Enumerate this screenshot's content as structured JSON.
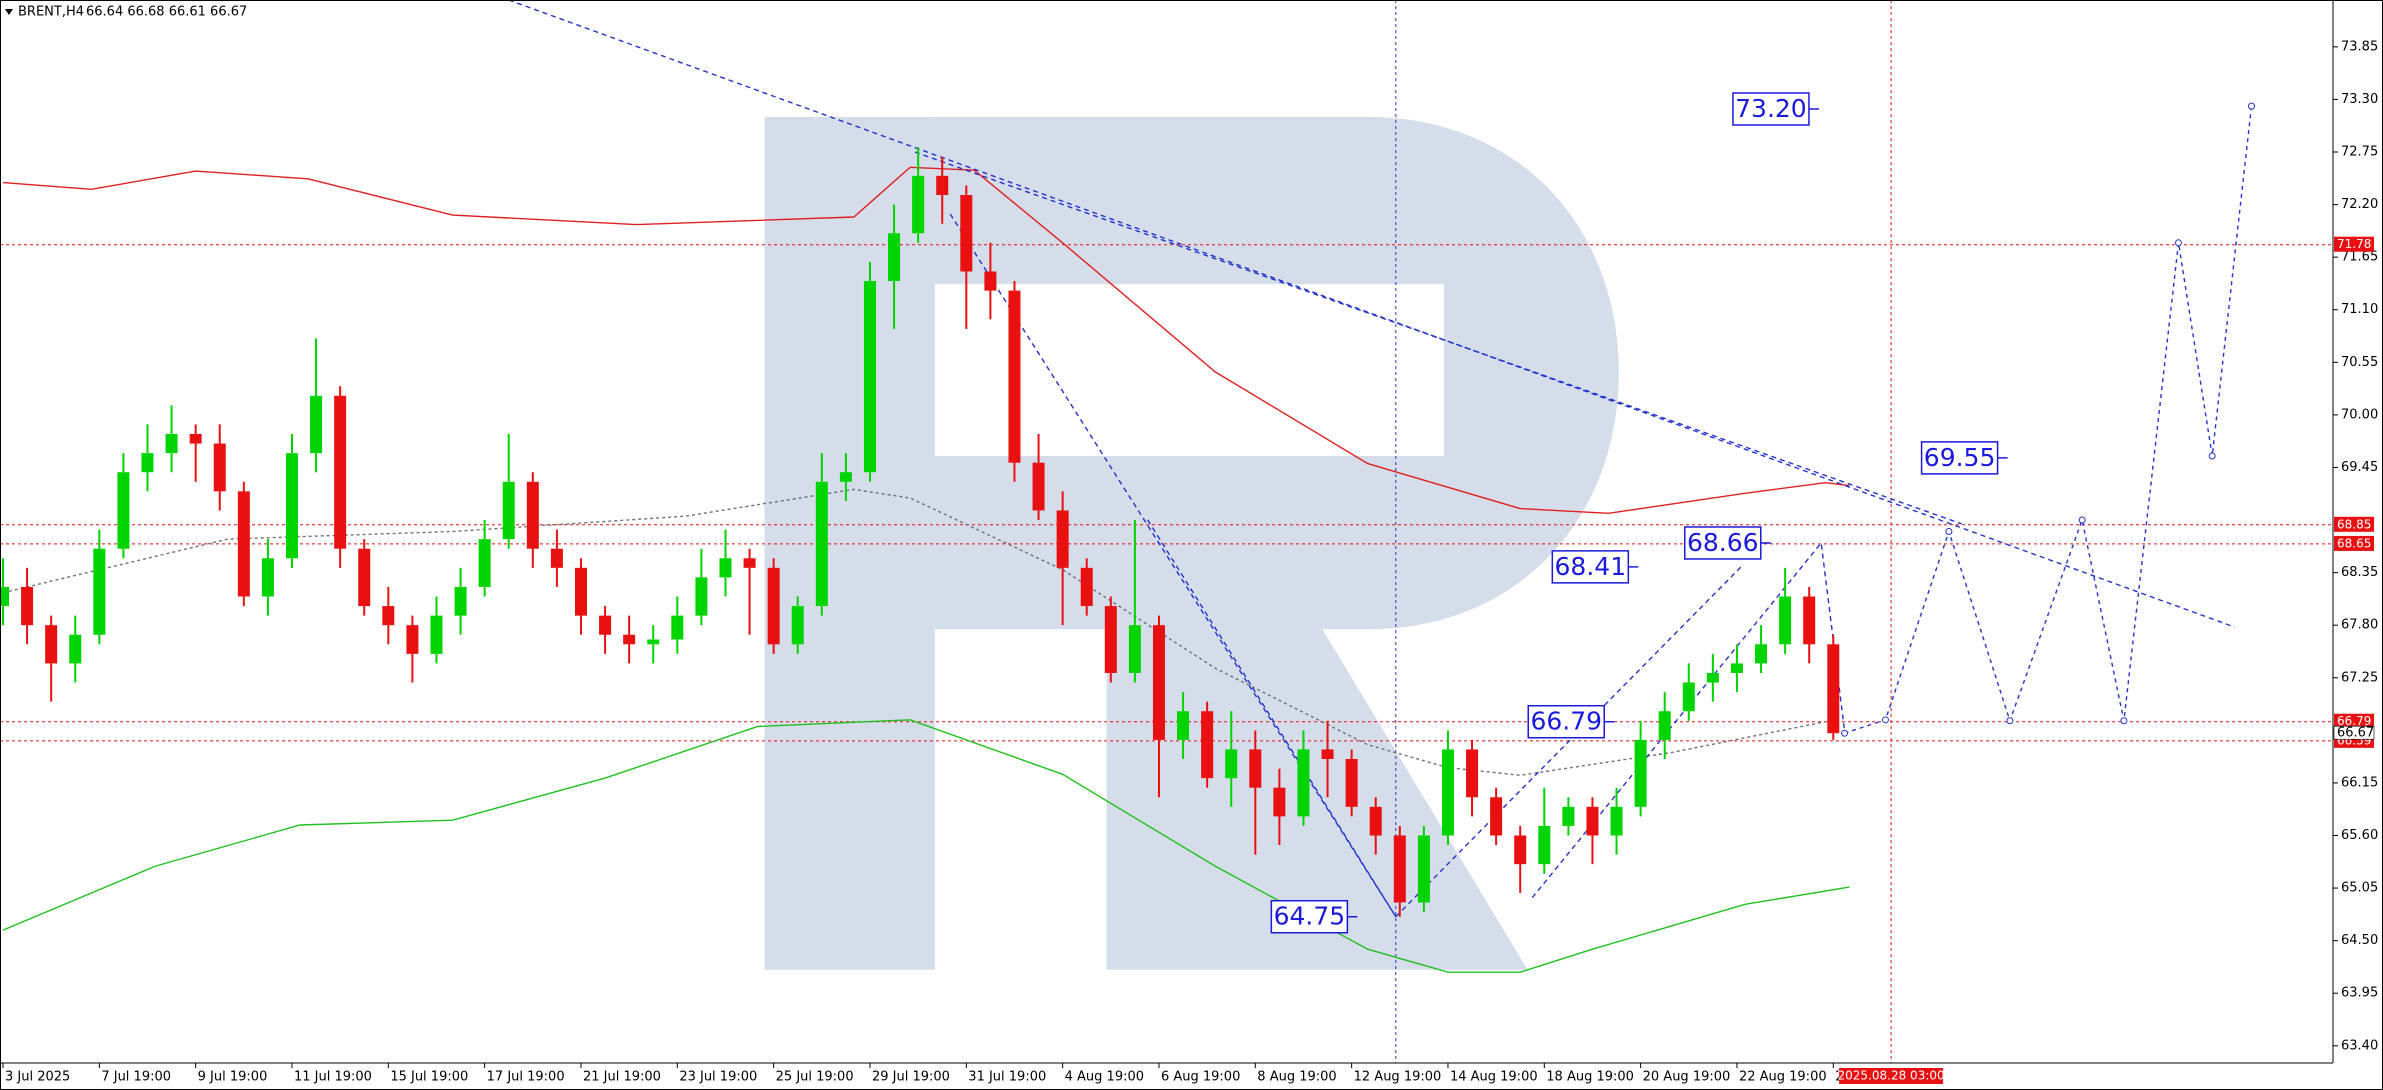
{
  "chart_data": {
    "type": "candlestick",
    "title": "BRENT,H4",
    "subtitle": "66.64 66.68 66.61 66.67",
    "up_color": "#00d400",
    "down_color": "#e81010",
    "xlim": [
      0,
      290
    ],
    "ylim": [
      63.22,
      74.34
    ],
    "xticks": [
      {
        "value": 0,
        "label": "3 Jul 2025"
      },
      {
        "value": 12,
        "label": "7 Jul 19:00"
      },
      {
        "value": 24,
        "label": "9 Jul 19:00"
      },
      {
        "value": 36,
        "label": "11 Jul 19:00"
      },
      {
        "value": 48,
        "label": "15 Jul 19:00"
      },
      {
        "value": 60,
        "label": "17 Jul 19:00"
      },
      {
        "value": 72,
        "label": "21 Jul 19:00"
      },
      {
        "value": 84,
        "label": "23 Jul 19:00"
      },
      {
        "value": 96,
        "label": "25 Jul 19:00"
      },
      {
        "value": 108,
        "label": "29 Jul 19:00"
      },
      {
        "value": 120,
        "label": "31 Jul 19:00"
      },
      {
        "value": 132,
        "label": "4 Aug 19:00"
      },
      {
        "value": 144,
        "label": "6 Aug 19:00"
      },
      {
        "value": 156,
        "label": "8 Aug 19:00"
      },
      {
        "value": 168,
        "label": "12 Aug 19:00"
      },
      {
        "value": 180,
        "label": "14 Aug 19:00"
      },
      {
        "value": 192,
        "label": "18 Aug 19:00"
      },
      {
        "value": 204,
        "label": "20 Aug 19:00"
      },
      {
        "value": 216,
        "label": "22 Aug 19:00"
      },
      {
        "value": 228,
        "label": "2"
      }
    ],
    "yticks": [
      73.85,
      {
        "value": 73.3,
        "label": "73.30"
      },
      72.75,
      {
        "value": 72.2,
        "label": "72.20"
      },
      71.65,
      {
        "value": 71.1,
        "label": "71.10"
      },
      70.55,
      {
        "value": 70,
        "label": "70.00"
      },
      69.45,
      68.35,
      {
        "value": 67.8,
        "label": "67.80"
      },
      67.25,
      66.15,
      {
        "value": 65.6,
        "label": "65.60"
      },
      65.05,
      {
        "value": 64.5,
        "label": "64.50"
      },
      63.95,
      {
        "value": 63.4,
        "label": "63.40"
      }
    ],
    "x": [
      0,
      3,
      6,
      9,
      12,
      15,
      18,
      21,
      24,
      27,
      30,
      33,
      36,
      39,
      42,
      45,
      48,
      51,
      54,
      57,
      60,
      63,
      66,
      69,
      72,
      75,
      78,
      81,
      84,
      87,
      90,
      93,
      96,
      99,
      102,
      105,
      108,
      111,
      114,
      117,
      120,
      123,
      126,
      129,
      132,
      135,
      138,
      141,
      144,
      147,
      150,
      153,
      156,
      159,
      162,
      165,
      168,
      171,
      174,
      177,
      180,
      183,
      186,
      189,
      192,
      195,
      198,
      201,
      204,
      207,
      210,
      213,
      216,
      219,
      222,
      225,
      228
    ],
    "open": [
      68.0,
      68.2,
      67.8,
      67.4,
      67.7,
      68.6,
      69.4,
      69.6,
      69.8,
      69.7,
      69.2,
      68.1,
      68.5,
      69.6,
      70.2,
      68.6,
      68.0,
      67.8,
      67.5,
      67.9,
      68.2,
      68.7,
      69.3,
      68.6,
      68.4,
      67.9,
      67.7,
      67.6,
      67.65,
      67.9,
      68.3,
      68.5,
      68.4,
      67.6,
      68.0,
      69.3,
      69.4,
      71.4,
      71.9,
      72.5,
      72.3,
      71.5,
      71.3,
      69.5,
      69.0,
      68.4,
      68.0,
      67.3,
      67.8,
      66.6,
      66.9,
      66.2,
      66.5,
      66.1,
      65.8,
      66.5,
      66.4,
      65.9,
      65.6,
      64.9,
      65.6,
      66.5,
      66.0,
      65.6,
      65.3,
      65.7,
      65.9,
      65.6,
      65.9,
      66.6,
      66.9,
      67.2,
      67.3,
      67.4,
      67.6,
      68.1,
      67.6
    ],
    "high": [
      68.5,
      68.4,
      67.9,
      67.9,
      68.8,
      69.6,
      69.9,
      70.1,
      69.9,
      69.9,
      69.3,
      68.7,
      69.8,
      70.8,
      70.3,
      68.7,
      68.2,
      67.9,
      68.1,
      68.4,
      68.9,
      69.8,
      69.4,
      68.8,
      68.5,
      68.0,
      67.9,
      67.8,
      68.1,
      68.6,
      68.8,
      68.6,
      68.5,
      68.1,
      69.6,
      69.6,
      71.6,
      72.2,
      72.8,
      72.7,
      72.4,
      71.8,
      71.4,
      69.8,
      69.2,
      68.5,
      68.1,
      68.9,
      67.9,
      67.1,
      67.0,
      66.9,
      66.7,
      66.3,
      66.7,
      66.8,
      66.5,
      66.0,
      65.7,
      65.7,
      66.7,
      66.6,
      66.1,
      65.7,
      66.1,
      66.0,
      66.0,
      66.1,
      66.8,
      67.1,
      67.4,
      67.5,
      67.6,
      67.8,
      68.4,
      68.2,
      67.7
    ],
    "low": [
      67.8,
      67.6,
      67.0,
      67.2,
      67.6,
      68.5,
      69.2,
      69.4,
      69.3,
      69.0,
      68.0,
      67.9,
      68.4,
      69.4,
      68.4,
      67.9,
      67.6,
      67.2,
      67.4,
      67.7,
      68.1,
      68.6,
      68.4,
      68.2,
      67.7,
      67.5,
      67.4,
      67.4,
      67.5,
      67.8,
      68.1,
      67.7,
      67.5,
      67.5,
      67.9,
      69.1,
      69.3,
      70.9,
      71.8,
      72.0,
      70.9,
      71.0,
      69.3,
      68.9,
      67.8,
      67.9,
      67.2,
      67.2,
      66.0,
      66.4,
      66.1,
      65.9,
      65.4,
      65.5,
      65.7,
      66.0,
      65.8,
      65.4,
      64.75,
      64.8,
      65.5,
      65.8,
      65.5,
      65.0,
      65.2,
      65.6,
      65.3,
      65.4,
      65.8,
      66.4,
      66.8,
      67.0,
      67.1,
      67.3,
      67.5,
      67.4,
      66.6
    ],
    "close": [
      68.2,
      67.8,
      67.4,
      67.7,
      68.6,
      69.4,
      69.6,
      69.8,
      69.7,
      69.2,
      68.1,
      68.5,
      69.6,
      70.2,
      68.6,
      68.0,
      67.8,
      67.5,
      67.9,
      68.2,
      68.7,
      69.3,
      68.6,
      68.4,
      67.9,
      67.7,
      67.6,
      67.65,
      67.9,
      68.3,
      68.5,
      68.4,
      67.6,
      68.0,
      69.3,
      69.4,
      71.4,
      71.9,
      72.5,
      72.3,
      71.5,
      71.3,
      69.5,
      69.0,
      68.4,
      68.0,
      67.3,
      67.8,
      66.6,
      66.9,
      66.2,
      66.5,
      66.1,
      65.8,
      66.5,
      66.4,
      65.9,
      65.6,
      64.9,
      65.6,
      66.5,
      66.0,
      65.6,
      65.3,
      65.7,
      65.9,
      65.6,
      65.9,
      66.6,
      66.9,
      67.2,
      67.3,
      67.4,
      67.6,
      68.1,
      67.6,
      66.67
    ],
    "indicators": [
      {
        "color": "#e02020",
        "dash": "none",
        "x": [
          0,
          11,
          24,
          38,
          56,
          79,
          106,
          113,
          121,
          132,
          151,
          170,
          189,
          200,
          217,
          227,
          230
        ],
        "values": [
          72.43,
          72.36,
          72.55,
          72.47,
          72.09,
          71.99,
          72.07,
          72.59,
          72.56,
          71.8,
          70.45,
          69.49,
          69.02,
          68.97,
          69.18,
          69.29,
          69.26
        ]
      },
      {
        "color": "#20c020",
        "dash": "none",
        "x": [
          0,
          19,
          37,
          56,
          75,
          94,
          113,
          132,
          151,
          170,
          180,
          189,
          198,
          217,
          230
        ],
        "values": [
          64.61,
          65.28,
          65.71,
          65.76,
          66.2,
          66.74,
          66.81,
          66.24,
          65.28,
          64.41,
          64.17,
          64.17,
          64.41,
          64.88,
          65.06
        ]
      },
      {
        "color": "#707070",
        "dash": "3 3",
        "x": [
          0,
          28,
          56,
          85,
          106,
          113,
          132,
          151,
          170,
          180,
          189,
          208,
          227
        ],
        "values": [
          68.14,
          68.7,
          68.78,
          68.94,
          69.22,
          69.13,
          68.38,
          67.35,
          66.55,
          66.31,
          66.23,
          66.47,
          66.79
        ]
      },
      {
        "color": "#2233cc",
        "dash": "5 4",
        "x": [
          63,
          278
        ],
        "values": [
          74.34,
          67.78
        ]
      },
      {
        "color": "#2233cc",
        "dash": "5 4",
        "x": [
          113.6,
          244
        ],
        "values": [
          72.75,
          68.86
        ]
      },
      {
        "color": "#2233cc",
        "dash": "5 4",
        "x": [
          118,
          173.5,
          null,
          142.6,
          173.5,
          216.5,
          null,
          190.5,
          226.5,
          229.4
        ],
        "values": [
          72.1,
          64.75,
          null,
          68.9,
          64.75,
          68.41,
          null,
          64.95,
          68.66,
          66.7
        ]
      }
    ],
    "forecast": {
      "color": "#2233cc",
      "x": [
        229.4,
        234.5,
        242.4,
        250,
        259,
        264.2,
        271,
        275.2,
        280.1
      ],
      "values": [
        66.67,
        66.81,
        68.78,
        66.8,
        68.9,
        66.8,
        71.8,
        69.57,
        73.23
      ]
    },
    "levels": [
      {
        "value": 71.78,
        "label": "71.78"
      },
      {
        "value": 68.85,
        "label": "68.85"
      },
      {
        "value": 68.65,
        "label": "68.65"
      },
      {
        "value": 66.79,
        "label": "66.79"
      },
      {
        "value": 66.59,
        "label": "66.59"
      }
    ],
    "level_color": "#e81010",
    "current_price": {
      "value": 66.67,
      "label": "66.67"
    },
    "vlines": [
      {
        "x": 173.5,
        "color": "#2233cc"
      },
      {
        "x": 235.2,
        "color": "#e81010",
        "label": "2025.08.28 03:00"
      }
    ],
    "annotations": [
      {
        "value": 73.2,
        "label": "73.20",
        "x": 215.5
      },
      {
        "value": 69.55,
        "label": "69.55",
        "x": 239
      },
      {
        "value": 68.41,
        "label": "68.41",
        "x": 193
      },
      {
        "value": 68.66,
        "label": "68.66",
        "x": 209.5
      },
      {
        "value": 66.79,
        "label": "66.79",
        "x": 190
      },
      {
        "value": 64.75,
        "label": "64.75",
        "x": 158
      }
    ],
    "annotation_color": "#1a1adc"
  }
}
